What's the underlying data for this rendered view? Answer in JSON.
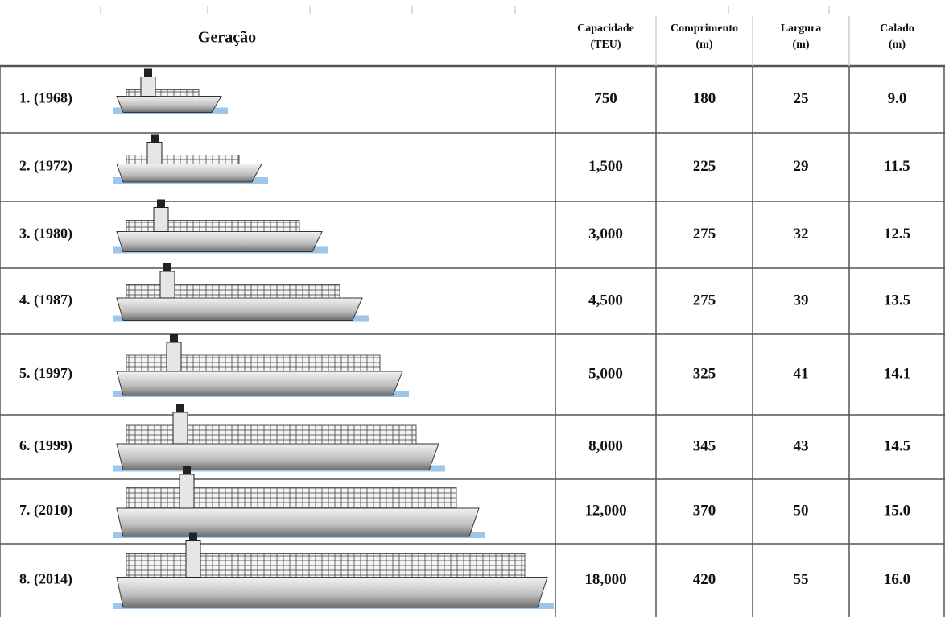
{
  "header": {
    "generation": "Geração",
    "columns": [
      [
        "Capacidade",
        "(TEU)"
      ],
      [
        "Comprimento",
        "(m)"
      ],
      [
        "Largura",
        "(m)"
      ],
      [
        "Calado",
        "(m)"
      ]
    ]
  },
  "table": {
    "rows": [
      [
        "1. (1968)",
        "750",
        "180",
        "25",
        "9.0"
      ],
      [
        "2. (1972)",
        "1,500",
        "225",
        "29",
        "11.5"
      ],
      [
        "3. (1980)",
        "3,000",
        "275",
        "32",
        "12.5"
      ],
      [
        "4. (1987)",
        "4,500",
        "275",
        "39",
        "13.5"
      ],
      [
        "5. (1997)",
        "5,000",
        "325",
        "41",
        "14.1"
      ],
      [
        "6. (1999)",
        "8,000",
        "345",
        "43",
        "14.5"
      ],
      [
        "7. (2010)",
        "12,000",
        "370",
        "50",
        "15.0"
      ],
      [
        "8. (2014)",
        "18,000",
        "420",
        "55",
        "16.0"
      ]
    ]
  }
}
